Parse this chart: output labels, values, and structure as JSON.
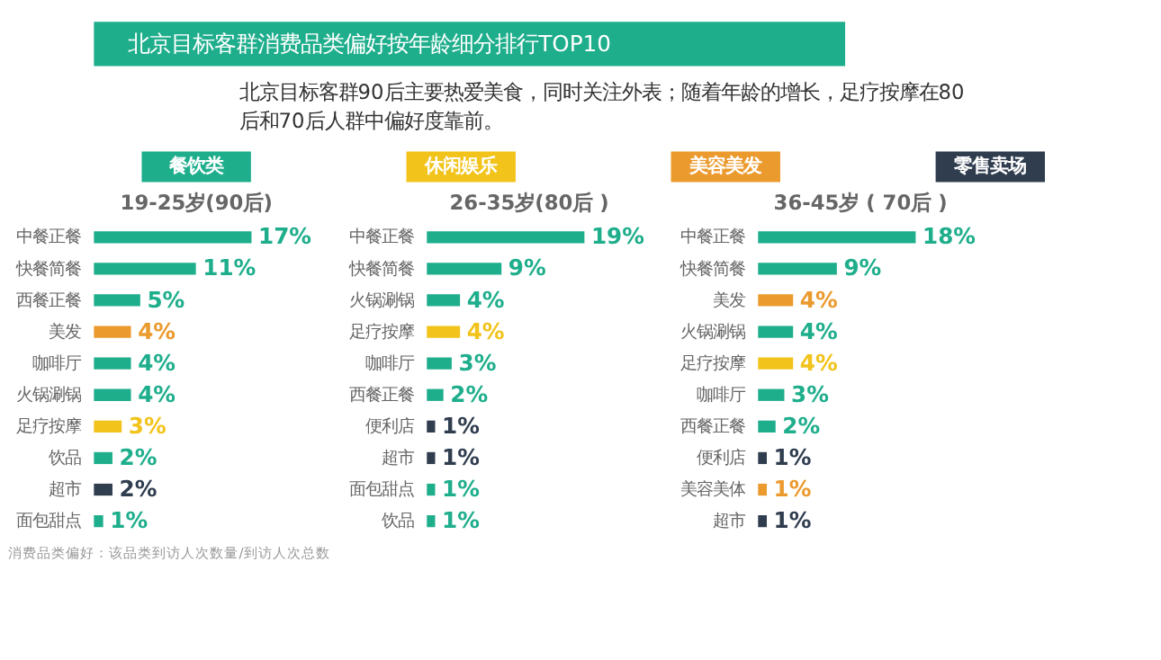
{
  "chart_data": [
    {
      "type": "other",
      "title": "北京目标客群消费品类偏好按年龄细分排行TOP10",
      "subtitle": "北京目标客群90后主要热爱美食，同时关注外表；随着年龄的增长，足疗按摩在80后和70后人群中偏好度靠前。"
    },
    {
      "type": "bar",
      "orientation": "horizontal",
      "title": "19-25岁(90后)",
      "legend": "top",
      "annotations": [
        "消费品类偏好：该品类到访人次数量/到访人次总数"
      ],
      "categories": [
        "中餐正餐",
        "快餐简餐",
        "西餐正餐",
        "美发",
        "咖啡厅",
        "火锅涮锅",
        "足疗按摩",
        "饮品",
        "超市",
        "面包甜点"
      ],
      "series": [
        {
          "name": "餐饮类",
          "color": "#1fae8c",
          "values": [
            17,
            11,
            5,
            null,
            4,
            4,
            null,
            2,
            null,
            1
          ],
          "value_labels": [
            "17%",
            "11%",
            "5%",
            null,
            "4%",
            "4%",
            null,
            "2%",
            null,
            "1%"
          ]
        },
        {
          "name": "休闲娱乐",
          "color": "#f2c31a",
          "values": [
            null,
            null,
            null,
            null,
            null,
            null,
            3,
            null,
            null,
            null
          ],
          "value_labels": [
            null,
            null,
            null,
            null,
            null,
            null,
            "3%",
            null,
            null,
            null
          ]
        },
        {
          "name": "美容美发",
          "color": "#eb9a2e",
          "values": [
            null,
            null,
            null,
            4,
            null,
            null,
            null,
            null,
            null,
            null
          ],
          "value_labels": [
            null,
            null,
            null,
            "4%",
            null,
            null,
            null,
            null,
            null,
            null
          ]
        },
        {
          "name": "零售卖场",
          "color": "#2f3d4f",
          "values": [
            null,
            null,
            null,
            null,
            null,
            null,
            null,
            null,
            2,
            null
          ],
          "value_labels": [
            null,
            null,
            null,
            null,
            null,
            null,
            null,
            null,
            "2%",
            null
          ]
        }
      ]
    },
    {
      "type": "bar",
      "orientation": "horizontal",
      "title": "26-35岁(80后 )",
      "categories": [
        "中餐正餐",
        "快餐简餐",
        "火锅涮锅",
        "足疗按摩",
        "咖啡厅",
        "西餐正餐",
        "便利店",
        "超市",
        "面包甜点",
        "饮品"
      ],
      "series": [
        {
          "color": "#1fae8c",
          "values": [
            19,
            9,
            4,
            null,
            3,
            2,
            null,
            null,
            1,
            1
          ],
          "value_labels": [
            "19%",
            "9%",
            "4%",
            null,
            "3%",
            "2%",
            null,
            null,
            "1%",
            "1%"
          ]
        },
        {
          "color": "#f2c31a",
          "values": [
            null,
            null,
            null,
            4,
            null,
            null,
            null,
            null,
            null,
            null
          ],
          "value_labels": [
            null,
            null,
            null,
            "4%",
            null,
            null,
            null,
            null,
            null,
            null
          ]
        },
        {
          "color": "#2f3d4f",
          "values": [
            null,
            null,
            null,
            null,
            null,
            null,
            1,
            1,
            null,
            null
          ],
          "value_labels": [
            null,
            null,
            null,
            null,
            null,
            null,
            "1%",
            "1%",
            null,
            null
          ]
        }
      ]
    },
    {
      "type": "bar",
      "orientation": "horizontal",
      "title": "36-45岁 ( 70后 )",
      "categories": [
        "中餐正餐",
        "快餐简餐",
        "美发",
        "火锅涮锅",
        "足疗按摩",
        "咖啡厅",
        "西餐正餐",
        "便利店",
        "美容美体",
        "超市"
      ],
      "series": [
        {
          "color": "#1fae8c",
          "values": [
            18,
            9,
            null,
            4,
            null,
            3,
            2,
            null,
            null,
            null
          ],
          "value_labels": [
            "18%",
            "9%",
            null,
            "4%",
            null,
            "3%",
            "2%",
            null,
            null,
            null
          ]
        },
        {
          "color": "#f2c31a",
          "values": [
            null,
            null,
            null,
            null,
            4,
            null,
            null,
            null,
            null,
            null
          ],
          "value_labels": [
            null,
            null,
            null,
            null,
            "4%",
            null,
            null,
            null,
            null,
            null
          ]
        },
        {
          "color": "#eb9a2e",
          "values": [
            null,
            null,
            4,
            null,
            null,
            null,
            null,
            null,
            1,
            null
          ],
          "value_labels": [
            null,
            null,
            "4%",
            null,
            null,
            null,
            null,
            null,
            "1%",
            null
          ]
        },
        {
          "color": "#2f3d4f",
          "values": [
            null,
            null,
            null,
            null,
            null,
            null,
            null,
            1,
            null,
            1
          ],
          "value_labels": [
            null,
            null,
            null,
            null,
            null,
            null,
            null,
            "1%",
            null,
            "1%"
          ]
        }
      ]
    }
  ]
}
